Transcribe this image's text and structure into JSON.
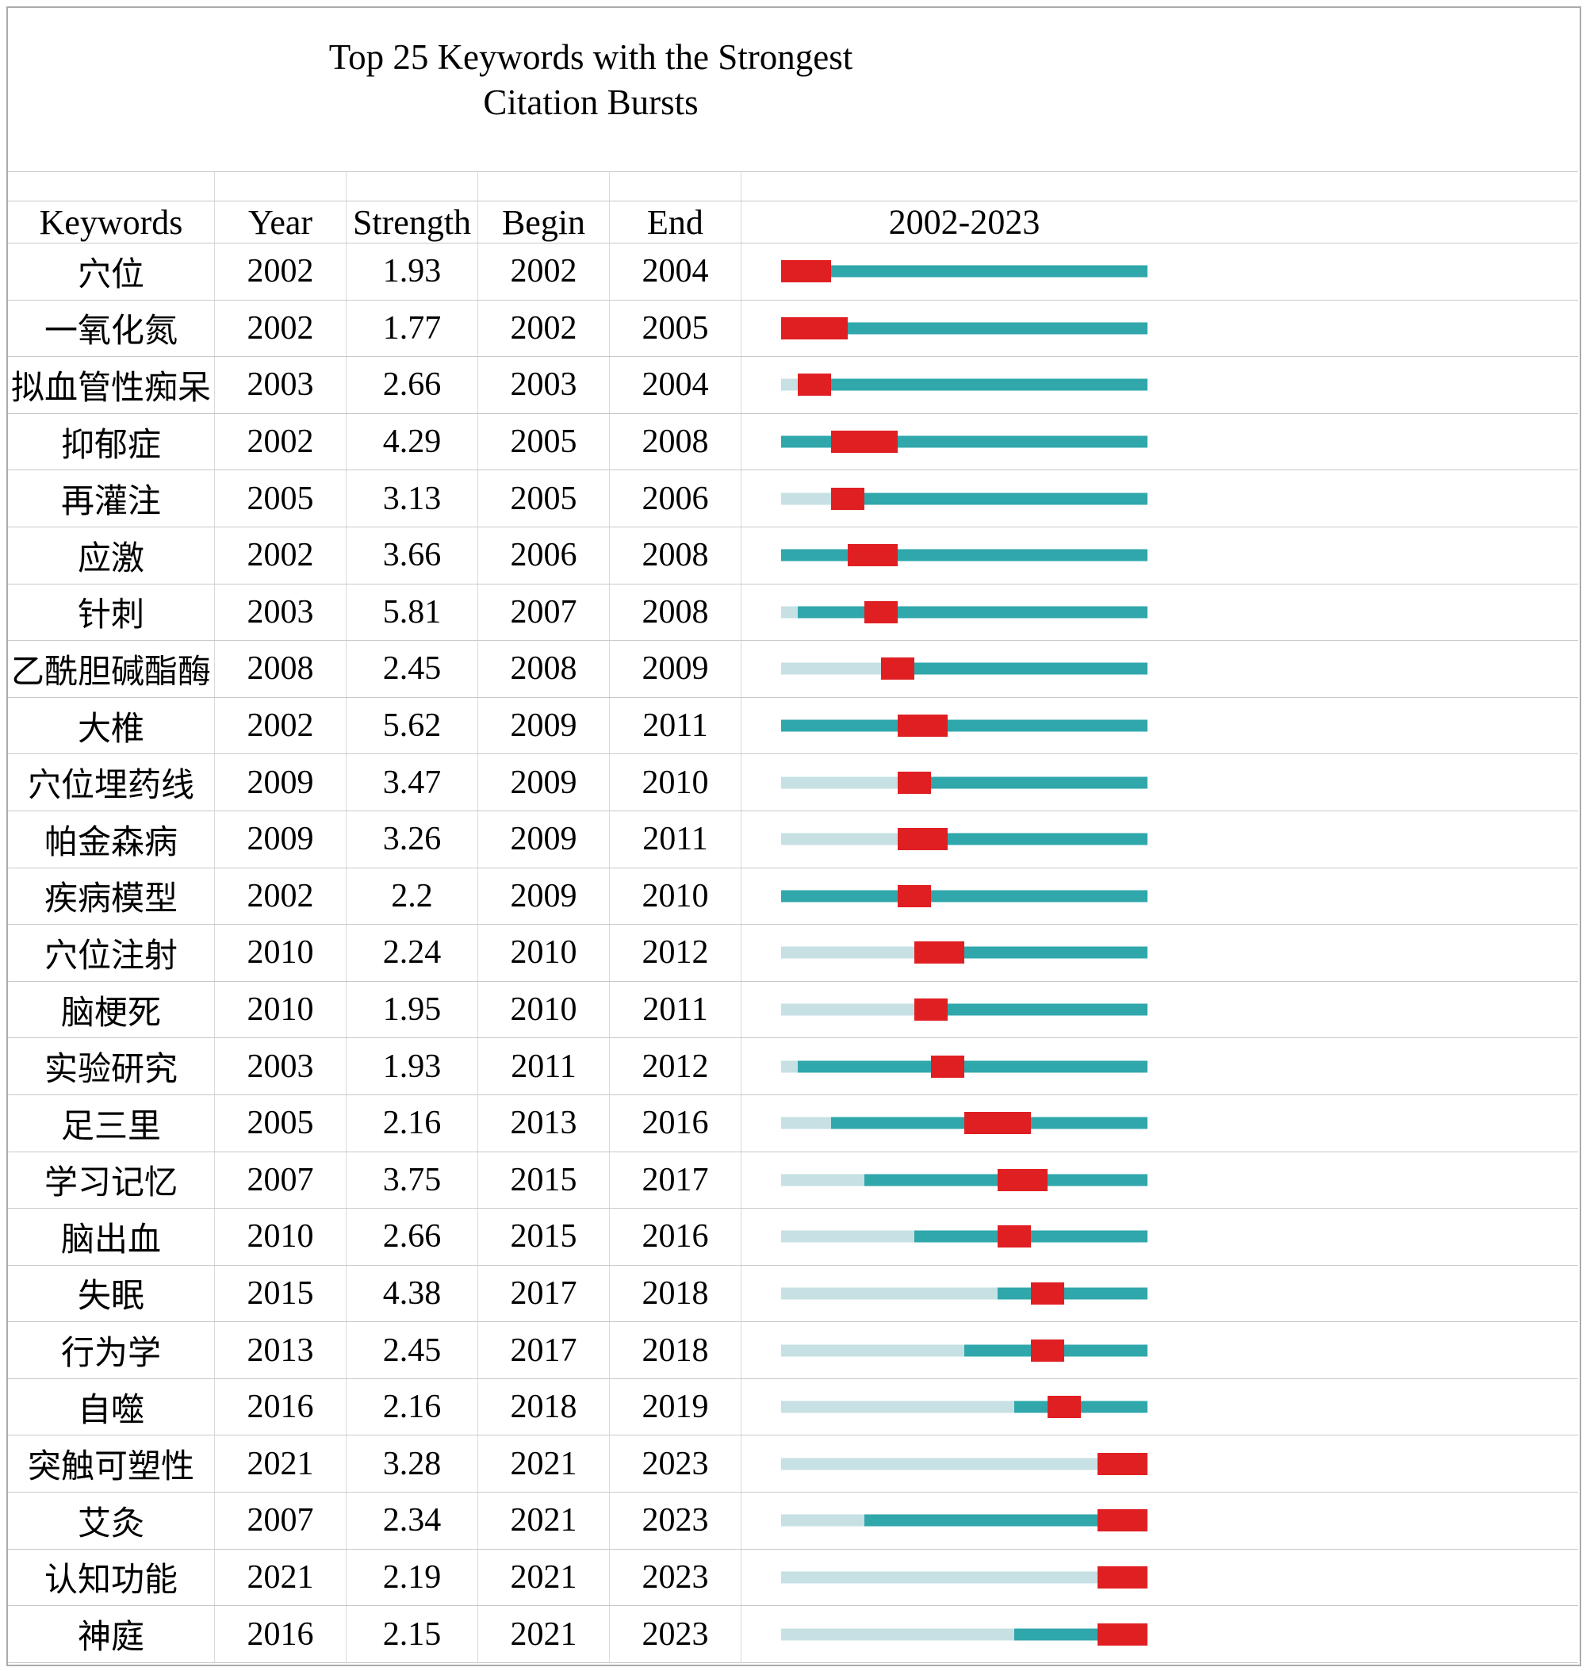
{
  "title": {
    "line1": "Top 25 Keywords with the Strongest",
    "line2": "Citation Bursts"
  },
  "columns": {
    "keywords": "Keywords",
    "year": "Year",
    "strength": "Strength",
    "begin": "Begin",
    "end": "End",
    "timeline": "2002-2023"
  },
  "colors": {
    "pre_burst_segment": "#c6e0e3",
    "active_segment": "#2fa7ab",
    "burst_segment": "#e01f23",
    "gridline": "#c9c9c9"
  },
  "chart_data": {
    "type": "table",
    "title": "Top 25 Keywords with the Strongest Citation Bursts",
    "columns": [
      "Keywords",
      "Year",
      "Strength",
      "Begin",
      "End",
      "2002-2023"
    ],
    "timeline_range": [
      2002,
      2023
    ],
    "rows": [
      {
        "keyword": "穴位",
        "year": 2002,
        "strength": "1.93",
        "begin": 2002,
        "end": 2004
      },
      {
        "keyword": "一氧化氮",
        "year": 2002,
        "strength": "1.77",
        "begin": 2002,
        "end": 2005
      },
      {
        "keyword": "拟血管性痴呆",
        "year": 2003,
        "strength": "2.66",
        "begin": 2003,
        "end": 2004
      },
      {
        "keyword": "抑郁症",
        "year": 2002,
        "strength": "4.29",
        "begin": 2005,
        "end": 2008
      },
      {
        "keyword": "再灌注",
        "year": 2005,
        "strength": "3.13",
        "begin": 2005,
        "end": 2006
      },
      {
        "keyword": "应激",
        "year": 2002,
        "strength": "3.66",
        "begin": 2006,
        "end": 2008
      },
      {
        "keyword": "针刺",
        "year": 2003,
        "strength": "5.81",
        "begin": 2007,
        "end": 2008
      },
      {
        "keyword": "乙酰胆碱酯酶",
        "year": 2008,
        "strength": "2.45",
        "begin": 2008,
        "end": 2009
      },
      {
        "keyword": "大椎",
        "year": 2002,
        "strength": "5.62",
        "begin": 2009,
        "end": 2011
      },
      {
        "keyword": "穴位埋药线",
        "year": 2009,
        "strength": "3.47",
        "begin": 2009,
        "end": 2010
      },
      {
        "keyword": "帕金森病",
        "year": 2009,
        "strength": "3.26",
        "begin": 2009,
        "end": 2011
      },
      {
        "keyword": "疾病模型",
        "year": 2002,
        "strength": "2.2",
        "begin": 2009,
        "end": 2010
      },
      {
        "keyword": "穴位注射",
        "year": 2010,
        "strength": "2.24",
        "begin": 2010,
        "end": 2012
      },
      {
        "keyword": "脑梗死",
        "year": 2010,
        "strength": "1.95",
        "begin": 2010,
        "end": 2011
      },
      {
        "keyword": "实验研究",
        "year": 2003,
        "strength": "1.93",
        "begin": 2011,
        "end": 2012
      },
      {
        "keyword": "足三里",
        "year": 2005,
        "strength": "2.16",
        "begin": 2013,
        "end": 2016
      },
      {
        "keyword": "学习记忆",
        "year": 2007,
        "strength": "3.75",
        "begin": 2015,
        "end": 2017
      },
      {
        "keyword": "脑出血",
        "year": 2010,
        "strength": "2.66",
        "begin": 2015,
        "end": 2016
      },
      {
        "keyword": "失眠",
        "year": 2015,
        "strength": "4.38",
        "begin": 2017,
        "end": 2018
      },
      {
        "keyword": "行为学",
        "year": 2013,
        "strength": "2.45",
        "begin": 2017,
        "end": 2018
      },
      {
        "keyword": "自噬",
        "year": 2016,
        "strength": "2.16",
        "begin": 2018,
        "end": 2019
      },
      {
        "keyword": "突触可塑性",
        "year": 2021,
        "strength": "3.28",
        "begin": 2021,
        "end": 2023
      },
      {
        "keyword": "艾灸",
        "year": 2007,
        "strength": "2.34",
        "begin": 2021,
        "end": 2023
      },
      {
        "keyword": "认知功能",
        "year": 2021,
        "strength": "2.19",
        "begin": 2021,
        "end": 2023
      },
      {
        "keyword": "神庭",
        "year": 2016,
        "strength": "2.15",
        "begin": 2021,
        "end": 2023
      }
    ]
  }
}
